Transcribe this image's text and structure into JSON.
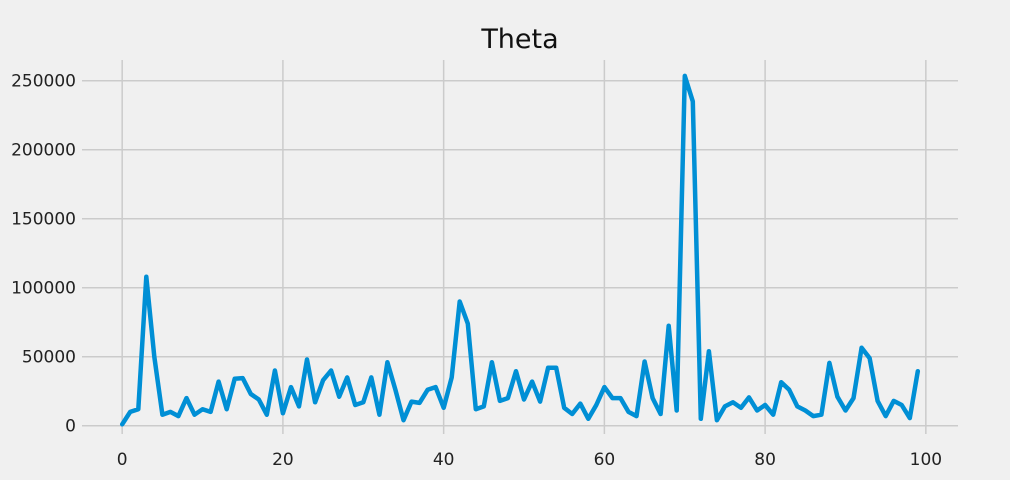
{
  "chart_data": {
    "type": "line",
    "title": "Theta",
    "xlabel": "",
    "ylabel": "",
    "xlim": [
      -5,
      104
    ],
    "ylim": [
      -6000,
      265000
    ],
    "xticks": [
      0,
      20,
      40,
      60,
      80,
      100
    ],
    "yticks": [
      0,
      50000,
      100000,
      150000,
      200000,
      250000
    ],
    "grid": true,
    "legend": "none",
    "colors": {
      "line": "#008fd5",
      "grid": "#cbcbcb",
      "background": "#f0f0f0"
    },
    "series": [
      {
        "x": [
          0,
          1,
          2,
          3,
          4,
          5,
          6,
          7,
          8,
          9,
          10,
          11,
          12,
          13,
          14,
          15,
          16,
          17,
          18,
          19,
          20,
          21,
          22,
          23,
          24,
          25,
          26,
          27,
          28,
          29,
          30,
          31,
          32,
          33,
          34,
          35,
          36,
          37,
          38,
          39,
          40,
          41,
          42,
          43,
          44,
          45,
          46,
          47,
          48,
          49,
          50,
          51,
          52,
          53,
          54,
          55,
          56,
          57,
          58,
          59,
          60,
          61,
          62,
          63,
          64,
          65,
          66,
          67,
          68,
          69,
          70,
          71,
          72,
          73,
          74,
          75,
          76,
          77,
          78,
          79,
          80,
          81,
          82,
          83,
          84,
          85,
          86,
          87,
          88,
          89,
          90,
          91,
          92,
          93,
          94,
          95,
          96,
          97,
          98,
          99
        ],
        "values": [
          1000,
          10000,
          12000,
          108000,
          50000,
          8000,
          10000,
          7000,
          20000,
          8000,
          12000,
          10000,
          32000,
          12000,
          34000,
          34500,
          23000,
          19000,
          8000,
          40000,
          9000,
          28000,
          14000,
          48000,
          17000,
          33000,
          40000,
          21000,
          35000,
          15000,
          17000,
          35000,
          8000,
          46000,
          26000,
          4000,
          17500,
          16500,
          26000,
          28000,
          13000,
          35000,
          90000,
          74000,
          12000,
          14000,
          46000,
          18000,
          20000,
          39500,
          19000,
          32000,
          17500,
          42000,
          42000,
          13000,
          8500,
          16000,
          5000,
          15000,
          28000,
          20000,
          20000,
          10000,
          7000,
          46500,
          20000,
          8500,
          72500,
          11000,
          253500,
          235000,
          5000,
          54000,
          4000,
          14000,
          17000,
          13000,
          20500,
          11000,
          15000,
          8000,
          31500,
          26000,
          14000,
          11000,
          7000,
          8000,
          45500,
          21000,
          11000,
          20000,
          56500,
          49000,
          18000,
          7000,
          18000,
          15000,
          5500,
          39500
        ]
      }
    ]
  }
}
